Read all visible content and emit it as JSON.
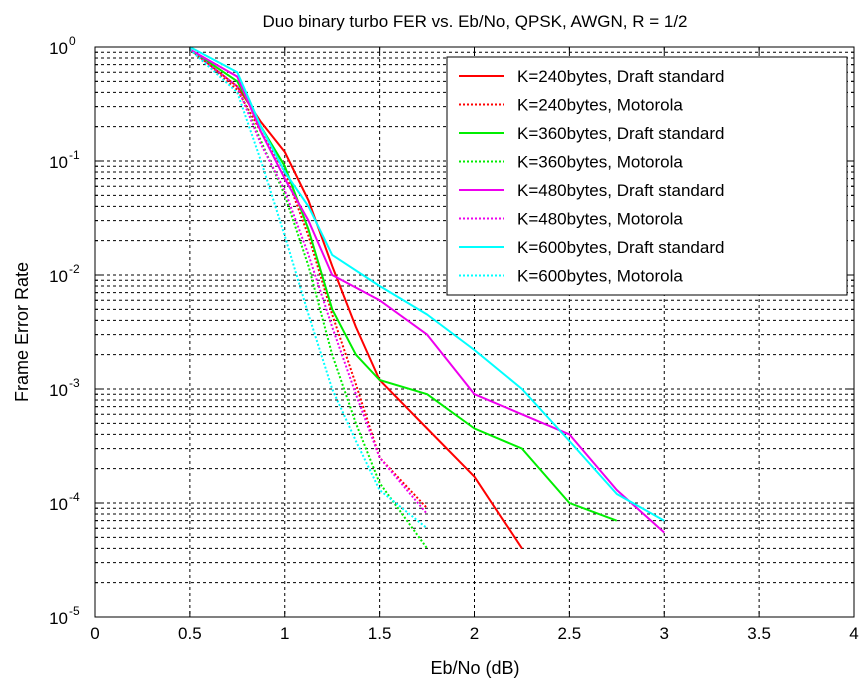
{
  "chart_data": {
    "type": "line",
    "title": "Duo binary turbo FER vs. Eb/No, QPSK, AWGN, R = 1/2",
    "xlabel": "Eb/No (dB)",
    "ylabel": "Frame Error Rate",
    "xlim": [
      0,
      4
    ],
    "ylim": [
      1e-05,
      1
    ],
    "yscale": "log",
    "grid": true,
    "legend_position": "top-right",
    "x_ticks": [
      "0",
      "0.5",
      "1",
      "1.5",
      "2",
      "2.5",
      "3",
      "3.5",
      "4"
    ],
    "y_ticks": [
      {
        "base": "10",
        "exp": "0",
        "value": 1
      },
      {
        "base": "10",
        "exp": "-1",
        "value": 0.1
      },
      {
        "base": "10",
        "exp": "-2",
        "value": 0.01
      },
      {
        "base": "10",
        "exp": "-3",
        "value": 0.001
      },
      {
        "base": "10",
        "exp": "-4",
        "value": 0.0001
      },
      {
        "base": "10",
        "exp": "-5",
        "value": 1e-05
      }
    ],
    "series": [
      {
        "name": "K=240bytes, Draft standard",
        "color": "#ff0000",
        "style": "solid",
        "points": [
          [
            0.5,
            0.95
          ],
          [
            0.75,
            0.45
          ],
          [
            0.875,
            0.22
          ],
          [
            1.0,
            0.12
          ],
          [
            1.125,
            0.045
          ],
          [
            1.25,
            0.012
          ],
          [
            1.375,
            0.0035
          ],
          [
            1.5,
            0.0012
          ],
          [
            1.75,
            0.00045
          ],
          [
            2.0,
            0.00017
          ],
          [
            2.25,
            4e-05
          ]
        ]
      },
      {
        "name": "K=240bytes, Motorola",
        "color": "#ff0000",
        "style": "dotted",
        "points": [
          [
            0.5,
            0.95
          ],
          [
            0.75,
            0.42
          ],
          [
            0.875,
            0.18
          ],
          [
            1.0,
            0.08
          ],
          [
            1.125,
            0.022
          ],
          [
            1.25,
            0.0045
          ],
          [
            1.375,
            0.0011
          ],
          [
            1.5,
            0.00025
          ],
          [
            1.75,
            9e-05
          ]
        ]
      },
      {
        "name": "K=360bytes, Draft standard",
        "color": "#00ee00",
        "style": "solid",
        "points": [
          [
            0.5,
            0.95
          ],
          [
            0.75,
            0.5
          ],
          [
            0.875,
            0.2
          ],
          [
            1.0,
            0.09
          ],
          [
            1.125,
            0.025
          ],
          [
            1.25,
            0.005
          ],
          [
            1.375,
            0.002
          ],
          [
            1.5,
            0.0012
          ],
          [
            1.75,
            0.0009
          ],
          [
            2.0,
            0.00045
          ],
          [
            2.25,
            0.0003
          ],
          [
            2.5,
            0.0001
          ],
          [
            2.75,
            7e-05
          ]
        ]
      },
      {
        "name": "K=360bytes, Motorola",
        "color": "#00ee00",
        "style": "dotted",
        "points": [
          [
            0.5,
            0.95
          ],
          [
            0.75,
            0.45
          ],
          [
            0.875,
            0.15
          ],
          [
            1.0,
            0.05
          ],
          [
            1.125,
            0.012
          ],
          [
            1.25,
            0.002
          ],
          [
            1.375,
            0.0005
          ],
          [
            1.5,
            0.00015
          ],
          [
            1.75,
            4e-05
          ]
        ]
      },
      {
        "name": "K=480bytes, Draft standard",
        "color": "#ee00ee",
        "style": "solid",
        "points": [
          [
            0.5,
            0.95
          ],
          [
            0.75,
            0.55
          ],
          [
            0.875,
            0.18
          ],
          [
            1.0,
            0.07
          ],
          [
            1.125,
            0.03
          ],
          [
            1.25,
            0.01
          ],
          [
            1.5,
            0.006
          ],
          [
            1.75,
            0.003
          ],
          [
            2.0,
            0.0009
          ],
          [
            2.25,
            0.0006
          ],
          [
            2.5,
            0.0004
          ],
          [
            2.75,
            0.00013
          ],
          [
            3.0,
            5.5e-05
          ]
        ]
      },
      {
        "name": "K=480bytes, Motorola",
        "color": "#ee00ee",
        "style": "dotted",
        "points": [
          [
            0.5,
            0.95
          ],
          [
            0.75,
            0.45
          ],
          [
            0.875,
            0.14
          ],
          [
            1.0,
            0.055
          ],
          [
            1.125,
            0.015
          ],
          [
            1.25,
            0.0035
          ],
          [
            1.375,
            0.0009
          ],
          [
            1.5,
            0.00025
          ],
          [
            1.75,
            8e-05
          ]
        ]
      },
      {
        "name": "K=600bytes, Draft standard",
        "color": "#00ffff",
        "style": "solid",
        "points": [
          [
            0.5,
            1.0
          ],
          [
            0.75,
            0.6
          ],
          [
            0.875,
            0.2
          ],
          [
            1.0,
            0.08
          ],
          [
            1.125,
            0.04
          ],
          [
            1.25,
            0.015
          ],
          [
            1.5,
            0.008
          ],
          [
            1.75,
            0.0045
          ],
          [
            2.0,
            0.0022
          ],
          [
            2.25,
            0.001
          ],
          [
            2.5,
            0.00035
          ],
          [
            2.75,
            0.00012
          ],
          [
            3.0,
            7e-05
          ]
        ]
      },
      {
        "name": "K=600bytes, Motorola",
        "color": "#00ffff",
        "style": "dotted",
        "points": [
          [
            0.5,
            0.95
          ],
          [
            0.75,
            0.4
          ],
          [
            0.875,
            0.1
          ],
          [
            1.0,
            0.022
          ],
          [
            1.125,
            0.0045
          ],
          [
            1.25,
            0.001
          ],
          [
            1.375,
            0.00035
          ],
          [
            1.5,
            0.00013
          ],
          [
            1.75,
            6e-05
          ]
        ]
      }
    ]
  }
}
